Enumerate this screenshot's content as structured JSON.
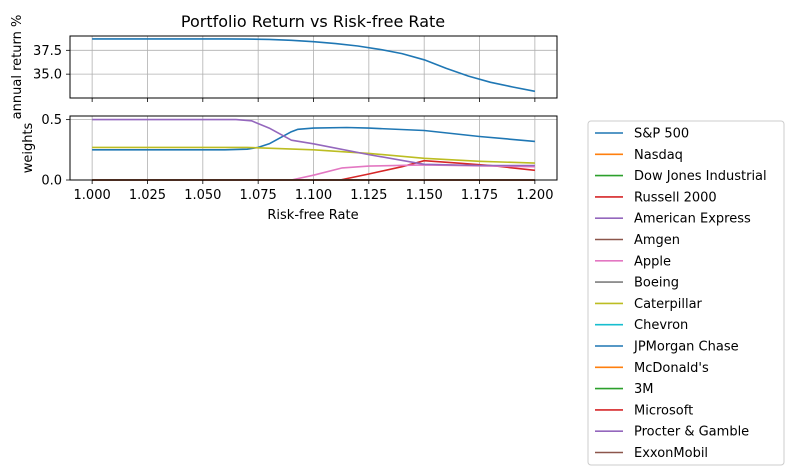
{
  "chart_data": {
    "type": "line",
    "title": "Portfolio Return vs Risk-free Rate",
    "xlabel": "Risk-free Rate",
    "xlim": [
      0.99,
      1.21
    ],
    "x_ticks": [
      "1.000",
      "1.025",
      "1.050",
      "1.075",
      "1.100",
      "1.125",
      "1.150",
      "1.175",
      "1.200"
    ],
    "grid": true,
    "legend_position": "outside-right",
    "panels": [
      {
        "name": "return",
        "ylabel": "annual return %",
        "ylim": [
          32.5,
          39.0
        ],
        "y_ticks": [
          "35.0",
          "37.5"
        ],
        "series": [
          {
            "name": "",
            "color": "#1f77b4",
            "x": [
              1.0,
              1.02,
              1.04,
              1.06,
              1.07,
              1.08,
              1.09,
              1.1,
              1.11,
              1.12,
              1.13,
              1.14,
              1.15,
              1.16,
              1.17,
              1.18,
              1.19,
              1.2
            ],
            "y": [
              38.7,
              38.7,
              38.7,
              38.7,
              38.68,
              38.64,
              38.55,
              38.4,
              38.2,
              37.95,
              37.6,
              37.15,
              36.5,
              35.6,
              34.8,
              34.15,
              33.65,
              33.2
            ]
          }
        ]
      },
      {
        "name": "weights",
        "ylabel": "weights",
        "ylim": [
          0.0,
          0.53
        ],
        "y_ticks": [
          "0.0",
          "0.5"
        ],
        "series": [
          {
            "name": "S&P 500",
            "color": "#1f77b4",
            "x": [
              1.0,
              1.06,
              1.07,
              1.075,
              1.08,
              1.09,
              1.093,
              1.1,
              1.115,
              1.125,
              1.15,
              1.175,
              1.2
            ],
            "y": [
              0.25,
              0.25,
              0.255,
              0.27,
              0.3,
              0.4,
              0.42,
              0.43,
              0.435,
              0.43,
              0.41,
              0.36,
              0.32
            ]
          },
          {
            "name": "Nasdaq",
            "color": "#ff7f0e",
            "x": [
              1.0,
              1.2
            ],
            "y": [
              0.0,
              0.0
            ]
          },
          {
            "name": "Dow Jones Industrial",
            "color": "#2ca02c",
            "x": [
              1.0,
              1.2
            ],
            "y": [
              0.0,
              0.0
            ]
          },
          {
            "name": "Russell 2000",
            "color": "#d62728",
            "x": [
              1.0,
              1.112,
              1.125,
              1.14,
              1.15,
              1.165,
              1.18,
              1.2
            ],
            "y": [
              0.0,
              0.0,
              0.05,
              0.11,
              0.16,
              0.14,
              0.12,
              0.08
            ]
          },
          {
            "name": "American Express",
            "color": "#9467bd",
            "x": [
              1.0,
              1.2
            ],
            "y": [
              0.0,
              0.0
            ]
          },
          {
            "name": "Amgen",
            "color": "#8c564b",
            "x": [
              1.0,
              1.2
            ],
            "y": [
              0.0,
              0.0
            ]
          },
          {
            "name": "Apple",
            "color": "#e377c2",
            "x": [
              1.0,
              1.09,
              1.1,
              1.113,
              1.125,
              1.15,
              1.2
            ],
            "y": [
              0.0,
              0.0,
              0.04,
              0.1,
              0.115,
              0.125,
              0.11
            ]
          },
          {
            "name": "Boeing",
            "color": "#7f7f7f",
            "x": [
              1.0,
              1.2
            ],
            "y": [
              0.0,
              0.0
            ]
          },
          {
            "name": "Caterpillar",
            "color": "#bcbd22",
            "x": [
              1.0,
              1.07,
              1.1,
              1.125,
              1.15,
              1.175,
              1.2
            ],
            "y": [
              0.27,
              0.27,
              0.25,
              0.22,
              0.18,
              0.155,
              0.14
            ]
          },
          {
            "name": "Chevron",
            "color": "#17becf",
            "x": [
              1.0,
              1.2
            ],
            "y": [
              0.0,
              0.0
            ]
          },
          {
            "name": "JPMorgan Chase",
            "color": "#1f77b4",
            "x": [
              1.0,
              1.2
            ],
            "y": [
              0.0,
              0.0
            ]
          },
          {
            "name": "McDonald's",
            "color": "#ff7f0e",
            "x": [
              1.0,
              1.2
            ],
            "y": [
              0.0,
              0.0
            ]
          },
          {
            "name": "3M",
            "color": "#2ca02c",
            "x": [
              1.0,
              1.2
            ],
            "y": [
              0.0,
              0.0
            ]
          },
          {
            "name": "Microsoft",
            "color": "#d62728",
            "x": [
              1.0,
              1.2
            ],
            "y": [
              0.0,
              0.0
            ]
          },
          {
            "name": "Procter & Gamble",
            "color": "#9467bd",
            "x": [
              1.0,
              1.065,
              1.072,
              1.08,
              1.09,
              1.1,
              1.125,
              1.15,
              1.175,
              1.2
            ],
            "y": [
              0.5,
              0.5,
              0.49,
              0.43,
              0.33,
              0.3,
              0.21,
              0.13,
              0.12,
              0.12
            ]
          },
          {
            "name": "ExxonMobil",
            "color": "#8c564b",
            "x": [
              1.0,
              1.2
            ],
            "y": [
              0.0,
              0.0
            ]
          }
        ]
      }
    ]
  }
}
